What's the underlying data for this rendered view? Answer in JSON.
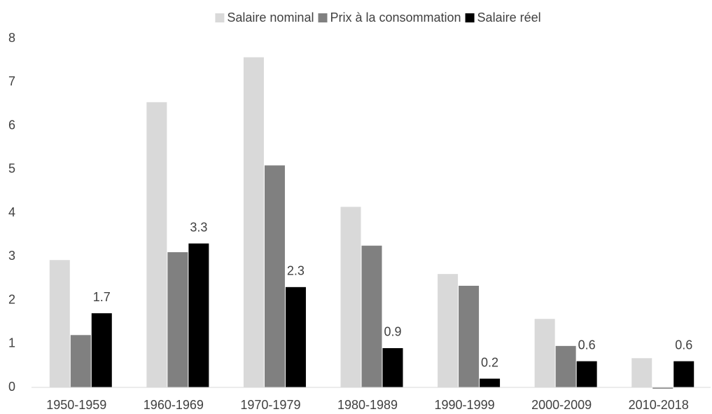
{
  "chart_data": {
    "type": "bar",
    "categories": [
      "1950-1959",
      "1960-1969",
      "1970-1979",
      "1980-1989",
      "1990-1999",
      "2000-2009",
      "2010-2018"
    ],
    "series": [
      {
        "name": "Salaire nominal",
        "color": "#d9d9d9",
        "values": [
          2.92,
          6.54,
          7.57,
          4.14,
          2.6,
          1.57,
          0.67
        ]
      },
      {
        "name": "Prix à la consommation",
        "color": "#808080",
        "values": [
          1.2,
          3.1,
          5.09,
          3.25,
          2.33,
          0.95,
          -0.03
        ]
      },
      {
        "name": "Salaire réel",
        "color": "#000000",
        "values": [
          1.7,
          3.3,
          2.3,
          0.9,
          0.2,
          0.6,
          0.6
        ],
        "data_labels": true
      }
    ],
    "ylim": [
      0,
      8
    ],
    "yticks": [
      0,
      1,
      2,
      3,
      4,
      5,
      6,
      7,
      8
    ],
    "grid": false,
    "legend": "top"
  }
}
